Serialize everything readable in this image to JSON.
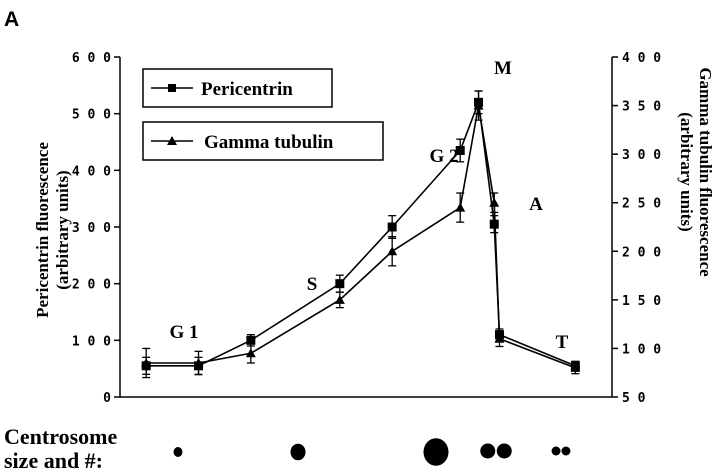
{
  "panel_label": "A",
  "chart_data": {
    "type": "line",
    "x": [
      0,
      1,
      2,
      3,
      4,
      5,
      6,
      7,
      8,
      9,
      10
    ],
    "series": [
      {
        "name": "Pericentrin",
        "axis": "left",
        "marker": "square",
        "values": [
          55,
          55,
          100,
          200,
          300,
          435,
          520,
          305,
          110,
          55
        ],
        "errors": [
          15,
          15,
          10,
          15,
          20,
          20,
          20,
          15,
          10,
          8
        ],
        "x": [
          0,
          1,
          2,
          3.7,
          4.7,
          6.0,
          6.35,
          6.65,
          6.75,
          8.2
        ]
      },
      {
        "name": "Gamma tubulin",
        "axis": "right",
        "marker": "triangle",
        "values": [
          85,
          85,
          95,
          150,
          200,
          245,
          350,
          250,
          110,
          80
        ],
        "errors": [
          15,
          12,
          10,
          8,
          15,
          15,
          15,
          10,
          8,
          6
        ],
        "x": [
          0,
          1,
          2,
          3.7,
          4.7,
          6.0,
          6.35,
          6.65,
          6.75,
          8.2
        ]
      }
    ],
    "ylabel_left": "Pericentrin fluorescence\n(arbitrary units)",
    "ylabel_right": "Gamma tubulin fluorescence\n(arbitrary units)",
    "ylim_left": [
      0,
      600
    ],
    "ylim_right": [
      50,
      400
    ],
    "yticks_left": [
      "0",
      "1 0 0",
      "2 0 0",
      "3 0 0",
      "4 0 0",
      "5 0 0",
      "6 0 0"
    ],
    "yticks_right": [
      "5 0",
      "1 0 0",
      "1 5 0",
      "2 0 0",
      "2 5 0",
      "3 0 0",
      "3 5 0",
      "4 0 0"
    ],
    "phase_labels": [
      "G 1",
      "S",
      "G 2",
      "M",
      "A",
      "T"
    ],
    "legend": [
      "Pericentrin",
      "Gamma tubulin"
    ],
    "grid": false
  },
  "centrosome": {
    "label_line1": "Centrosome",
    "label_line2": "size and #:",
    "dots": [
      {
        "count": 1,
        "size": "small"
      },
      {
        "count": 1,
        "size": "medium"
      },
      {
        "count": 1,
        "size": "large"
      },
      {
        "count": 2,
        "size": "medium"
      },
      {
        "count": 2,
        "size": "small"
      }
    ]
  }
}
